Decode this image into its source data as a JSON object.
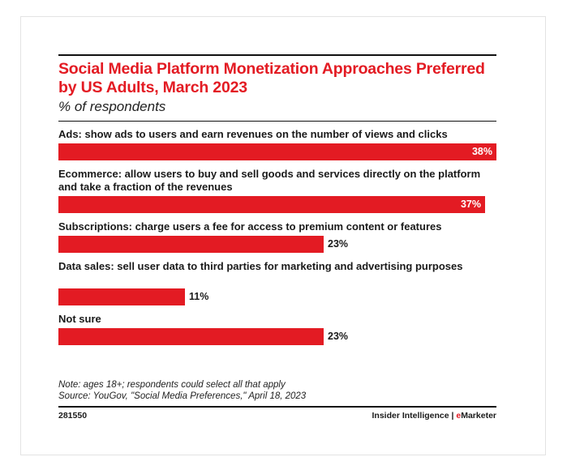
{
  "chart_data": {
    "type": "bar",
    "orientation": "horizontal",
    "title": "Social Media Platform Monetization Approaches Preferred by US Adults, March 2023",
    "subtitle": "% of respondents",
    "unit": "%",
    "xlim": [
      0,
      38
    ],
    "categories": [
      "Ads: show ads to users and earn revenues on the number of views and clicks",
      "Ecommerce: allow users to buy and sell goods and services directly on the platform and take a fraction of the revenues",
      "Subscriptions: charge users a fee for access to premium content or features",
      "Data sales: sell user data to third parties for marketing and advertising purposes",
      "Not sure"
    ],
    "values": [
      38,
      37,
      23,
      11,
      23
    ],
    "value_labels": [
      "38%",
      "37%",
      "23%",
      "11%",
      "23%"
    ]
  },
  "colors": {
    "accent": "#e31b23",
    "text": "#1a1a1a",
    "rule": "#111111"
  },
  "note": "Note: ages 18+; respondents could select all that apply",
  "source": "Source: YouGov, \"Social Media Preferences,\" April 18, 2023",
  "footer": {
    "chart_id": "281550",
    "brand_prefix": "Insider Intelligence | ",
    "brand_accent": "e",
    "brand_suffix": "Marketer"
  }
}
